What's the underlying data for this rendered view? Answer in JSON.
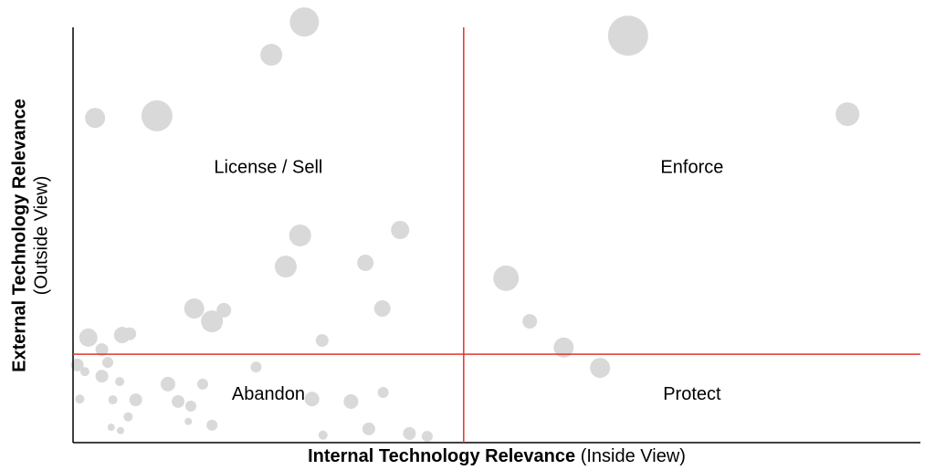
{
  "chart_data": {
    "type": "bubble",
    "xlabel": "Internal Technology Relevance",
    "xlabel_sub": "(Inside View)",
    "ylabel": "External Technology Relevance",
    "ylabel_sub": "(Outside View)",
    "xlim": [
      0,
      100
    ],
    "ylim": [
      0,
      100
    ],
    "dividers": {
      "x": 46.1,
      "y": 21.3,
      "color": "#e0362c"
    },
    "quadrants": {
      "top_left": "License / Sell",
      "top_right": "Enforce",
      "bottom_left": "Abandon",
      "bottom_right": "Protect"
    },
    "color": "#d9d9d9",
    "x": [
      27.3,
      23.4,
      65.5,
      2.6,
      9.9,
      91.4,
      26.8,
      38.6,
      25.1,
      34.5,
      51.1,
      14.3,
      16.4,
      17.8,
      36.5,
      53.9,
      1.8,
      5.8,
      6.7,
      3.4,
      29.4,
      57.9,
      62.2,
      0.5,
      3.4,
      4.1,
      21.6,
      11.2,
      15.3,
      28.2,
      32.8,
      36.6,
      7.4,
      12.4,
      13.9,
      4.7,
      0.8,
      6.5,
      16.4,
      34.9,
      39.7,
      41.8,
      29.5,
      1.4,
      5.5,
      13.6,
      4.5,
      5.6
    ],
    "y": [
      101.3,
      93.4,
      98.0,
      78.2,
      78.7,
      79.1,
      49.9,
      51.2,
      42.4,
      43.3,
      39.6,
      32.3,
      29.2,
      31.9,
      32.3,
      29.2,
      25.3,
      25.9,
      26.2,
      22.4,
      24.6,
      22.9,
      18.0,
      18.7,
      16.0,
      19.3,
      18.2,
      14.1,
      14.1,
      10.5,
      9.9,
      12.1,
      10.3,
      9.9,
      8.8,
      10.3,
      10.5,
      6.2,
      4.2,
      3.3,
      2.2,
      1.5,
      1.8,
      17.1,
      14.7,
      5.1,
      3.7,
      2.9
    ],
    "sizes": [
      16,
      12,
      22,
      11,
      17,
      13,
      12,
      10,
      12,
      9,
      14,
      11,
      12,
      8,
      9,
      8,
      10,
      9,
      7,
      7,
      7,
      11,
      11,
      7,
      7,
      6,
      6,
      8,
      6,
      8,
      8,
      6,
      7,
      7,
      6,
      5,
      5,
      5,
      6,
      7,
      7,
      6,
      5,
      5,
      5,
      4,
      4,
      4
    ]
  }
}
